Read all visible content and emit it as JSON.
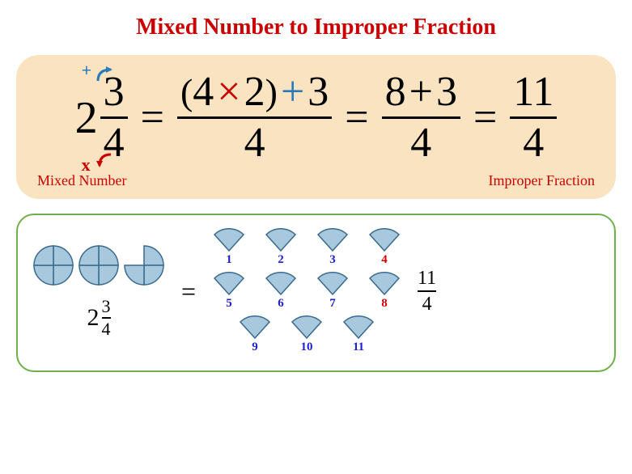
{
  "title": {
    "text": "Mixed Number to Improper Fraction",
    "color": "#cc0000"
  },
  "panel1": {
    "bg": "#fae3c0",
    "mixed": {
      "whole": "2",
      "num": "3",
      "den": "4"
    },
    "plus_symbol": "+",
    "plus_color": "#2b7bb9",
    "times_symbol": "x",
    "times_color": "#cc0000",
    "step1": {
      "lparen": "(",
      "a": "4",
      "times": "×",
      "times_color": "#cc0000",
      "b": "2",
      "rparen": ")",
      "plus": "+",
      "plus_color": "#2b7bb9",
      "c": "3",
      "den": "4"
    },
    "step2": {
      "a": "8",
      "plus": "+",
      "b": "3",
      "den": "4"
    },
    "step3": {
      "num": "11",
      "den": "4"
    },
    "label_left": "Mixed Number",
    "label_right": "Improper Fraction",
    "label_color": "#cc0000"
  },
  "panel2": {
    "border_color": "#6fb04a",
    "pie_fill": "#a8c8dd",
    "pie_stroke": "#3a6a8f",
    "mixed": {
      "whole": "2",
      "num": "3",
      "den": "4"
    },
    "eq": "=",
    "wedges": [
      [
        {
          "n": "1",
          "c": "#2020cc"
        },
        {
          "n": "2",
          "c": "#2020cc"
        },
        {
          "n": "3",
          "c": "#2020cc"
        },
        {
          "n": "4",
          "c": "#cc0000"
        }
      ],
      [
        {
          "n": "5",
          "c": "#2020cc"
        },
        {
          "n": "6",
          "c": "#2020cc"
        },
        {
          "n": "7",
          "c": "#2020cc"
        },
        {
          "n": "8",
          "c": "#cc0000"
        }
      ],
      [
        {
          "n": "9",
          "c": "#2020cc"
        },
        {
          "n": "10",
          "c": "#2020cc"
        },
        {
          "n": "11",
          "c": "#2020cc"
        }
      ]
    ],
    "result": {
      "num": "11",
      "den": "4"
    }
  }
}
